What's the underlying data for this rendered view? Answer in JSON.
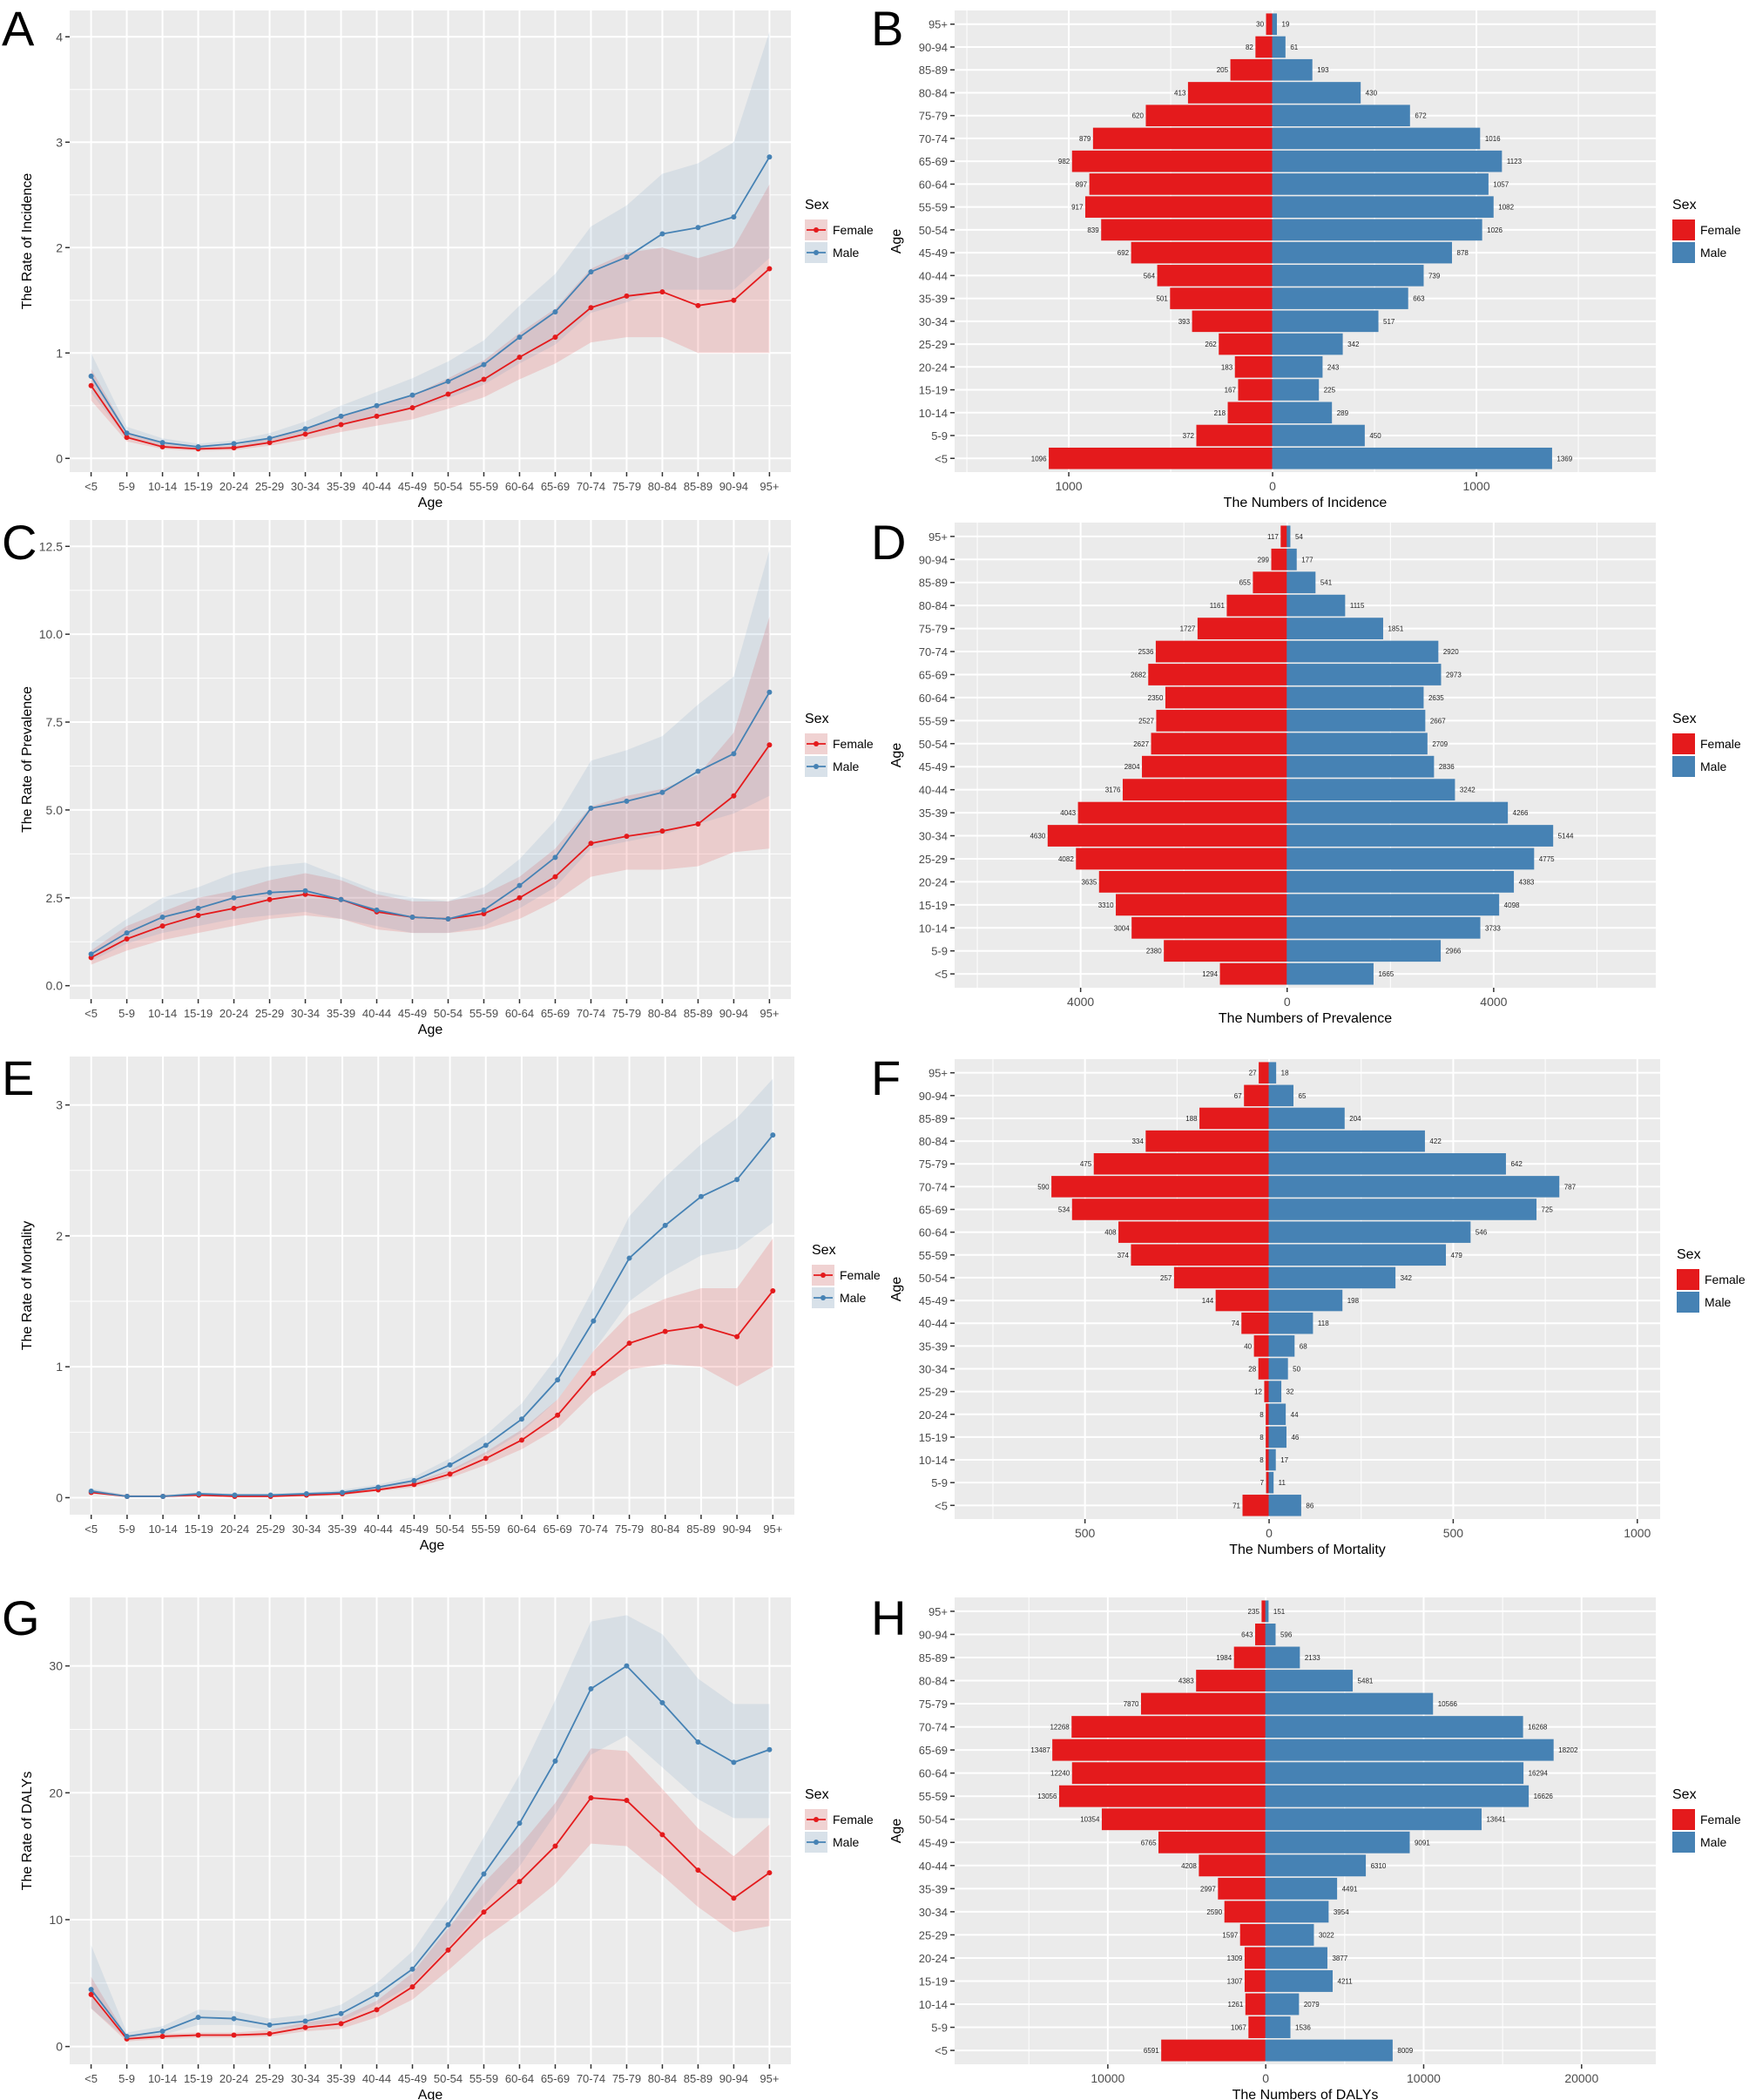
{
  "colors": {
    "female": "#E41A1C",
    "male": "#4682B4",
    "panel_bg": "#EBEBEB",
    "grid": "#FFFFFF"
  },
  "legend": {
    "title": "Sex",
    "entries": [
      "Female",
      "Male"
    ]
  },
  "age_groups": [
    "<5",
    "5-9",
    "10-14",
    "15-19",
    "20-24",
    "25-29",
    "30-34",
    "35-39",
    "40-44",
    "45-49",
    "50-54",
    "55-59",
    "60-64",
    "65-69",
    "70-74",
    "75-79",
    "80-84",
    "85-89",
    "90-94",
    "95+"
  ],
  "chart_data": [
    {
      "panel": "A",
      "type": "line",
      "xlabel": "Age",
      "ylabel": "The Rate of Incidence",
      "ylim": [
        -0.13,
        4.25
      ],
      "yticks": [
        0,
        1,
        2,
        3,
        4
      ],
      "ytick_labels": [
        "0",
        "1",
        "2",
        "3",
        "4"
      ],
      "grid": true,
      "legend": "right",
      "series": [
        {
          "name": "Female",
          "values": [
            0.69,
            0.2,
            0.11,
            0.09,
            0.1,
            0.15,
            0.23,
            0.32,
            0.4,
            0.48,
            0.61,
            0.75,
            0.96,
            1.15,
            1.43,
            1.54,
            1.58,
            1.45,
            1.5,
            1.8
          ],
          "lower": [
            0.55,
            0.16,
            0.09,
            0.07,
            0.08,
            0.12,
            0.18,
            0.25,
            0.31,
            0.37,
            0.47,
            0.58,
            0.75,
            0.9,
            1.1,
            1.15,
            1.15,
            1.0,
            1.0,
            1.0
          ],
          "upper": [
            0.85,
            0.25,
            0.14,
            0.11,
            0.12,
            0.19,
            0.28,
            0.4,
            0.5,
            0.6,
            0.76,
            0.93,
            1.19,
            1.42,
            1.8,
            1.95,
            2.0,
            1.9,
            2.0,
            2.6
          ]
        },
        {
          "name": "Male",
          "values": [
            0.78,
            0.24,
            0.15,
            0.11,
            0.14,
            0.19,
            0.28,
            0.4,
            0.5,
            0.6,
            0.73,
            0.89,
            1.15,
            1.39,
            1.77,
            1.91,
            2.13,
            2.19,
            2.29,
            2.86
          ],
          "lower": [
            0.62,
            0.19,
            0.12,
            0.09,
            0.11,
            0.15,
            0.22,
            0.31,
            0.39,
            0.47,
            0.57,
            0.7,
            0.9,
            1.08,
            1.38,
            1.48,
            1.6,
            1.6,
            1.6,
            1.9
          ],
          "upper": [
            1.0,
            0.3,
            0.19,
            0.14,
            0.17,
            0.24,
            0.35,
            0.5,
            0.63,
            0.76,
            0.92,
            1.12,
            1.45,
            1.75,
            2.2,
            2.4,
            2.7,
            2.8,
            3.0,
            4.05
          ]
        }
      ]
    },
    {
      "panel": "B",
      "type": "bar",
      "orientation": "horizontal-pyramid",
      "xlabel": "The Numbers of Incidence",
      "ylabel": "Age",
      "xlim": [
        -1560,
        1880
      ],
      "xticks": [
        -1000,
        0,
        1000
      ],
      "xtick_labels": [
        "1000",
        "0",
        "1000"
      ],
      "grid": true,
      "legend": "right",
      "series": [
        {
          "name": "Female",
          "values": [
            1096,
            372,
            218,
            167,
            183,
            262,
            393,
            501,
            564,
            692,
            839,
            917,
            897,
            982,
            879,
            620,
            413,
            205,
            82,
            30
          ]
        },
        {
          "name": "Male",
          "values": [
            1369,
            450,
            289,
            225,
            243,
            342,
            517,
            663,
            739,
            878,
            1026,
            1082,
            1057,
            1123,
            1016,
            672,
            430,
            193,
            61,
            19
          ]
        }
      ]
    },
    {
      "panel": "C",
      "type": "line",
      "xlabel": "Age",
      "ylabel": "The Rate of Prevalence",
      "ylim": [
        -0.38,
        13.25
      ],
      "yticks": [
        0,
        2.5,
        5,
        7.5,
        10,
        12.5
      ],
      "ytick_labels": [
        "0.0",
        "2.5",
        "5.0",
        "7.5",
        "10.0",
        "12.5"
      ],
      "grid": true,
      "legend": "right",
      "series": [
        {
          "name": "Female",
          "values": [
            0.8,
            1.33,
            1.7,
            2.0,
            2.2,
            2.45,
            2.6,
            2.45,
            2.1,
            1.95,
            1.9,
            2.05,
            2.5,
            3.1,
            4.05,
            4.25,
            4.4,
            4.6,
            5.4,
            6.85
          ],
          "lower": [
            0.6,
            1.0,
            1.3,
            1.5,
            1.7,
            1.9,
            2.0,
            1.9,
            1.6,
            1.5,
            1.5,
            1.6,
            1.9,
            2.4,
            3.1,
            3.3,
            3.3,
            3.4,
            3.8,
            3.9
          ],
          "upper": [
            1.0,
            1.7,
            2.1,
            2.5,
            2.7,
            3.0,
            3.2,
            3.0,
            2.6,
            2.4,
            2.4,
            2.6,
            3.1,
            3.9,
            5.1,
            5.4,
            5.6,
            6.0,
            7.2,
            10.5
          ]
        },
        {
          "name": "Male",
          "values": [
            0.9,
            1.5,
            1.95,
            2.2,
            2.5,
            2.65,
            2.7,
            2.45,
            2.15,
            1.95,
            1.9,
            2.15,
            2.85,
            3.65,
            5.05,
            5.25,
            5.5,
            6.1,
            6.6,
            8.35
          ],
          "lower": [
            0.7,
            1.2,
            1.5,
            1.7,
            1.9,
            2.0,
            2.1,
            1.9,
            1.7,
            1.5,
            1.5,
            1.7,
            2.2,
            2.8,
            3.9,
            4.1,
            4.3,
            4.6,
            4.9,
            5.4
          ],
          "upper": [
            1.2,
            1.9,
            2.5,
            2.8,
            3.2,
            3.4,
            3.5,
            3.1,
            2.7,
            2.5,
            2.4,
            2.8,
            3.6,
            4.7,
            6.4,
            6.7,
            7.1,
            8.0,
            8.8,
            12.4
          ]
        }
      ]
    },
    {
      "panel": "D",
      "type": "bar",
      "orientation": "horizontal-pyramid",
      "xlabel": "The Numbers of Prevalence",
      "ylabel": "Age",
      "xlim": [
        -6440,
        7140
      ],
      "xticks": [
        -4000,
        0,
        4000
      ],
      "xtick_labels": [
        "4000",
        "0",
        "4000"
      ],
      "grid": true,
      "legend": "right",
      "series": [
        {
          "name": "Female",
          "values": [
            1294,
            2380,
            3004,
            3310,
            3635,
            4082,
            4630,
            4043,
            3176,
            2804,
            2627,
            2527,
            2350,
            2682,
            2536,
            1727,
            1161,
            655,
            299,
            117
          ]
        },
        {
          "name": "Male",
          "values": [
            1665,
            2966,
            3733,
            4098,
            4383,
            4775,
            5144,
            4266,
            3242,
            2836,
            2709,
            2667,
            2635,
            2973,
            2920,
            1851,
            1115,
            541,
            177,
            54
          ]
        }
      ]
    },
    {
      "panel": "E",
      "type": "line",
      "xlabel": "Age",
      "ylabel": "The Rate of Mortality",
      "ylim": [
        -0.13,
        3.37
      ],
      "yticks": [
        0,
        1,
        2,
        3
      ],
      "ytick_labels": [
        "0",
        "1",
        "2",
        "3"
      ],
      "grid": true,
      "legend": "right",
      "series": [
        {
          "name": "Female",
          "values": [
            0.04,
            0.01,
            0.01,
            0.02,
            0.01,
            0.01,
            0.02,
            0.03,
            0.06,
            0.1,
            0.18,
            0.3,
            0.44,
            0.63,
            0.95,
            1.18,
            1.27,
            1.31,
            1.23,
            1.58
          ],
          "lower": [
            0.03,
            0.01,
            0.01,
            0.01,
            0.01,
            0.01,
            0.01,
            0.02,
            0.05,
            0.08,
            0.15,
            0.25,
            0.37,
            0.53,
            0.8,
            0.98,
            1.02,
            1.0,
            0.85,
            1.0
          ],
          "upper": [
            0.06,
            0.02,
            0.02,
            0.03,
            0.02,
            0.02,
            0.03,
            0.04,
            0.08,
            0.12,
            0.21,
            0.35,
            0.52,
            0.75,
            1.12,
            1.4,
            1.52,
            1.6,
            1.6,
            1.98
          ]
        },
        {
          "name": "Male",
          "values": [
            0.05,
            0.01,
            0.01,
            0.03,
            0.02,
            0.02,
            0.03,
            0.04,
            0.08,
            0.13,
            0.25,
            0.4,
            0.6,
            0.9,
            1.35,
            1.83,
            2.08,
            2.3,
            2.43,
            2.77
          ],
          "lower": [
            0.04,
            0.01,
            0.01,
            0.02,
            0.01,
            0.01,
            0.02,
            0.03,
            0.06,
            0.1,
            0.2,
            0.33,
            0.5,
            0.75,
            1.12,
            1.5,
            1.7,
            1.85,
            1.9,
            2.1
          ],
          "upper": [
            0.07,
            0.02,
            0.02,
            0.04,
            0.03,
            0.03,
            0.04,
            0.06,
            0.1,
            0.16,
            0.3,
            0.48,
            0.72,
            1.08,
            1.6,
            2.15,
            2.45,
            2.7,
            2.9,
            3.2
          ]
        }
      ]
    },
    {
      "panel": "F",
      "type": "bar",
      "orientation": "horizontal-pyramid",
      "xlabel": "The Numbers of Mortality",
      "ylabel": "Age",
      "xlim": [
        -854,
        1062
      ],
      "xticks": [
        -500,
        0,
        500,
        1000
      ],
      "xtick_labels": [
        "500",
        "0",
        "500",
        "1000"
      ],
      "grid": true,
      "legend": "right",
      "series": [
        {
          "name": "Female",
          "values": [
            71,
            7,
            8,
            8,
            8,
            12,
            28,
            40,
            74,
            144,
            257,
            374,
            408,
            534,
            590,
            475,
            334,
            188,
            67,
            27
          ]
        },
        {
          "name": "Male",
          "values": [
            86,
            11,
            17,
            46,
            44,
            32,
            50,
            68,
            118,
            198,
            342,
            479,
            546,
            725,
            787,
            642,
            422,
            204,
            65,
            18
          ]
        }
      ]
    },
    {
      "panel": "G",
      "type": "line",
      "xlabel": "Age",
      "ylabel": "The Rate of DALYs",
      "ylim": [
        -1.4,
        35.4
      ],
      "yticks": [
        0,
        10,
        20,
        30
      ],
      "ytick_labels": [
        "0",
        "10",
        "20",
        "30"
      ],
      "grid": true,
      "legend": "right",
      "series": [
        {
          "name": "Female",
          "values": [
            4.1,
            0.6,
            0.8,
            0.9,
            0.9,
            1.0,
            1.5,
            1.8,
            2.9,
            4.7,
            7.6,
            10.6,
            13.0,
            15.8,
            19.6,
            19.4,
            16.7,
            13.9,
            11.7,
            13.7
          ],
          "lower": [
            3.0,
            0.4,
            0.6,
            0.7,
            0.7,
            0.8,
            1.2,
            1.4,
            2.3,
            3.7,
            6.0,
            8.5,
            10.5,
            12.8,
            16.0,
            15.8,
            13.5,
            11.0,
            9.0,
            9.5
          ],
          "upper": [
            5.5,
            0.8,
            1.0,
            1.1,
            1.1,
            1.3,
            1.9,
            2.3,
            3.6,
            5.8,
            9.3,
            12.9,
            15.8,
            19.2,
            23.5,
            23.3,
            20.3,
            17.2,
            15.0,
            17.5
          ]
        },
        {
          "name": "Male",
          "values": [
            4.5,
            0.8,
            1.2,
            2.3,
            2.2,
            1.7,
            2.0,
            2.6,
            4.1,
            6.1,
            9.6,
            13.6,
            17.6,
            22.5,
            28.2,
            30.0,
            27.1,
            24.0,
            22.4,
            23.4
          ],
          "lower": [
            3.0,
            0.6,
            0.9,
            1.7,
            1.7,
            1.3,
            1.6,
            2.0,
            3.3,
            4.9,
            7.8,
            11.0,
            14.2,
            18.3,
            23.0,
            24.5,
            22.0,
            19.5,
            18.0,
            18.0
          ],
          "upper": [
            8.0,
            1.1,
            1.6,
            2.9,
            2.8,
            2.2,
            2.5,
            3.3,
            5.0,
            7.5,
            11.6,
            16.5,
            21.4,
            27.3,
            33.5,
            34.0,
            32.5,
            29.0,
            27.0,
            27.0
          ]
        }
      ]
    },
    {
      "panel": "H",
      "type": "bar",
      "orientation": "horizontal-pyramid",
      "xlabel": "The Numbers of DALYs",
      "ylabel": "Age",
      "xlim": [
        -19700,
        24700
      ],
      "xticks": [
        -10000,
        0,
        10000,
        20000
      ],
      "xtick_labels": [
        "10000",
        "0",
        "10000",
        "20000"
      ],
      "grid": true,
      "legend": "right",
      "series": [
        {
          "name": "Female",
          "values": [
            6591,
            1067,
            1261,
            1307,
            1309,
            1597,
            2590,
            2997,
            4208,
            6765,
            10354,
            13056,
            12240,
            13487,
            12268,
            7870,
            4383,
            1984,
            643,
            235
          ]
        },
        {
          "name": "Male",
          "values": [
            8009,
            1536,
            2079,
            4211,
            3877,
            3022,
            3954,
            4491,
            6310,
            9091,
            13641,
            16626,
            16294,
            18202,
            16268,
            10566,
            5481,
            2133,
            596,
            151
          ]
        }
      ]
    }
  ]
}
